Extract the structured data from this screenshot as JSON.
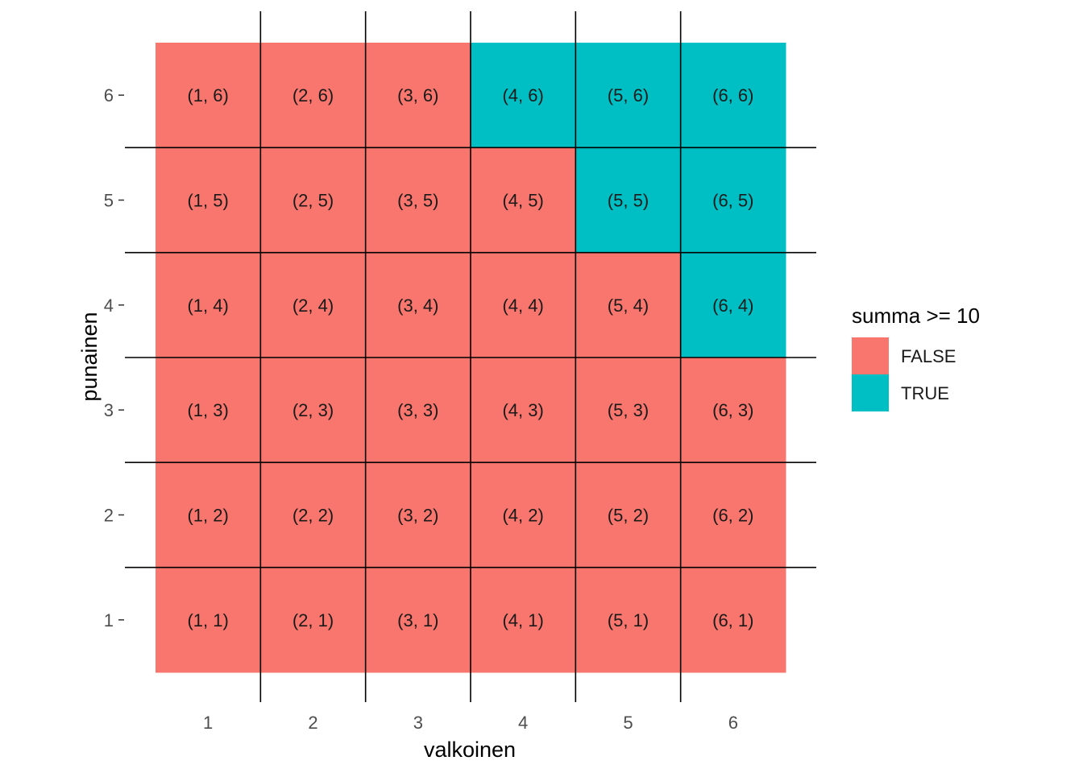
{
  "chart_data": {
    "type": "heatmap",
    "title": "",
    "xlabel": "valkoinen",
    "ylabel": "punainen",
    "x_categories": [
      "1",
      "2",
      "3",
      "4",
      "5",
      "6"
    ],
    "y_categories": [
      "1",
      "2",
      "3",
      "4",
      "5",
      "6"
    ],
    "fill_variable": "summa >= 10",
    "cells": [
      {
        "x": 1,
        "y": 1,
        "label": "(1, 1)",
        "value": "FALSE"
      },
      {
        "x": 2,
        "y": 1,
        "label": "(2, 1)",
        "value": "FALSE"
      },
      {
        "x": 3,
        "y": 1,
        "label": "(3, 1)",
        "value": "FALSE"
      },
      {
        "x": 4,
        "y": 1,
        "label": "(4, 1)",
        "value": "FALSE"
      },
      {
        "x": 5,
        "y": 1,
        "label": "(5, 1)",
        "value": "FALSE"
      },
      {
        "x": 6,
        "y": 1,
        "label": "(6, 1)",
        "value": "FALSE"
      },
      {
        "x": 1,
        "y": 2,
        "label": "(1, 2)",
        "value": "FALSE"
      },
      {
        "x": 2,
        "y": 2,
        "label": "(2, 2)",
        "value": "FALSE"
      },
      {
        "x": 3,
        "y": 2,
        "label": "(3, 2)",
        "value": "FALSE"
      },
      {
        "x": 4,
        "y": 2,
        "label": "(4, 2)",
        "value": "FALSE"
      },
      {
        "x": 5,
        "y": 2,
        "label": "(5, 2)",
        "value": "FALSE"
      },
      {
        "x": 6,
        "y": 2,
        "label": "(6, 2)",
        "value": "FALSE"
      },
      {
        "x": 1,
        "y": 3,
        "label": "(1, 3)",
        "value": "FALSE"
      },
      {
        "x": 2,
        "y": 3,
        "label": "(2, 3)",
        "value": "FALSE"
      },
      {
        "x": 3,
        "y": 3,
        "label": "(3, 3)",
        "value": "FALSE"
      },
      {
        "x": 4,
        "y": 3,
        "label": "(4, 3)",
        "value": "FALSE"
      },
      {
        "x": 5,
        "y": 3,
        "label": "(5, 3)",
        "value": "FALSE"
      },
      {
        "x": 6,
        "y": 3,
        "label": "(6, 3)",
        "value": "FALSE"
      },
      {
        "x": 1,
        "y": 4,
        "label": "(1, 4)",
        "value": "FALSE"
      },
      {
        "x": 2,
        "y": 4,
        "label": "(2, 4)",
        "value": "FALSE"
      },
      {
        "x": 3,
        "y": 4,
        "label": "(3, 4)",
        "value": "FALSE"
      },
      {
        "x": 4,
        "y": 4,
        "label": "(4, 4)",
        "value": "FALSE"
      },
      {
        "x": 5,
        "y": 4,
        "label": "(5, 4)",
        "value": "FALSE"
      },
      {
        "x": 6,
        "y": 4,
        "label": "(6, 4)",
        "value": "TRUE"
      },
      {
        "x": 1,
        "y": 5,
        "label": "(1, 5)",
        "value": "FALSE"
      },
      {
        "x": 2,
        "y": 5,
        "label": "(2, 5)",
        "value": "FALSE"
      },
      {
        "x": 3,
        "y": 5,
        "label": "(3, 5)",
        "value": "FALSE"
      },
      {
        "x": 4,
        "y": 5,
        "label": "(4, 5)",
        "value": "FALSE"
      },
      {
        "x": 5,
        "y": 5,
        "label": "(5, 5)",
        "value": "TRUE"
      },
      {
        "x": 6,
        "y": 5,
        "label": "(6, 5)",
        "value": "TRUE"
      },
      {
        "x": 1,
        "y": 6,
        "label": "(1, 6)",
        "value": "FALSE"
      },
      {
        "x": 2,
        "y": 6,
        "label": "(2, 6)",
        "value": "FALSE"
      },
      {
        "x": 3,
        "y": 6,
        "label": "(3, 6)",
        "value": "FALSE"
      },
      {
        "x": 4,
        "y": 6,
        "label": "(4, 6)",
        "value": "TRUE"
      },
      {
        "x": 5,
        "y": 6,
        "label": "(5, 6)",
        "value": "TRUE"
      },
      {
        "x": 6,
        "y": 6,
        "label": "(6, 6)",
        "value": "TRUE"
      }
    ],
    "legend": {
      "title": "summa >= 10",
      "position": "right",
      "entries": [
        {
          "label": "FALSE",
          "color": "#F8766D"
        },
        {
          "label": "TRUE",
          "color": "#00BFC4"
        }
      ]
    },
    "grid": true,
    "grid_color": "#000000",
    "background_color": "#ffffff"
  }
}
